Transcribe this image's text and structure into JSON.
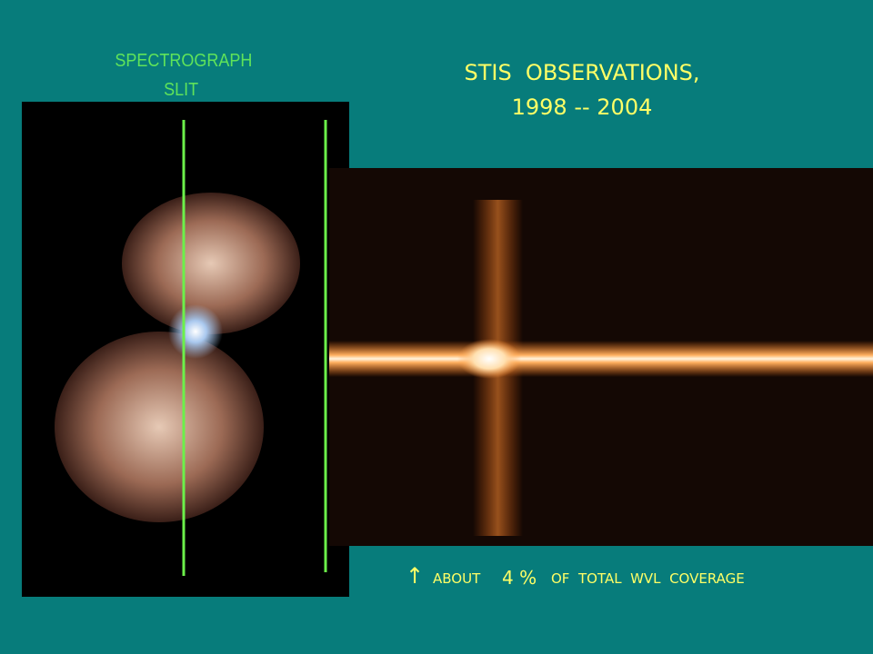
{
  "slit_label": {
    "line1": "SPECTROGRAPH",
    "line2": "SLIT"
  },
  "title": {
    "line1": "STIS  OBSERVATIONS,",
    "line2": "1998 -- 2004"
  },
  "caption": {
    "arrow": "↑",
    "prefix": "ABOUT",
    "amount": "4 %",
    "suffix": "OF  TOTAL  WVL  COVERAGE"
  }
}
